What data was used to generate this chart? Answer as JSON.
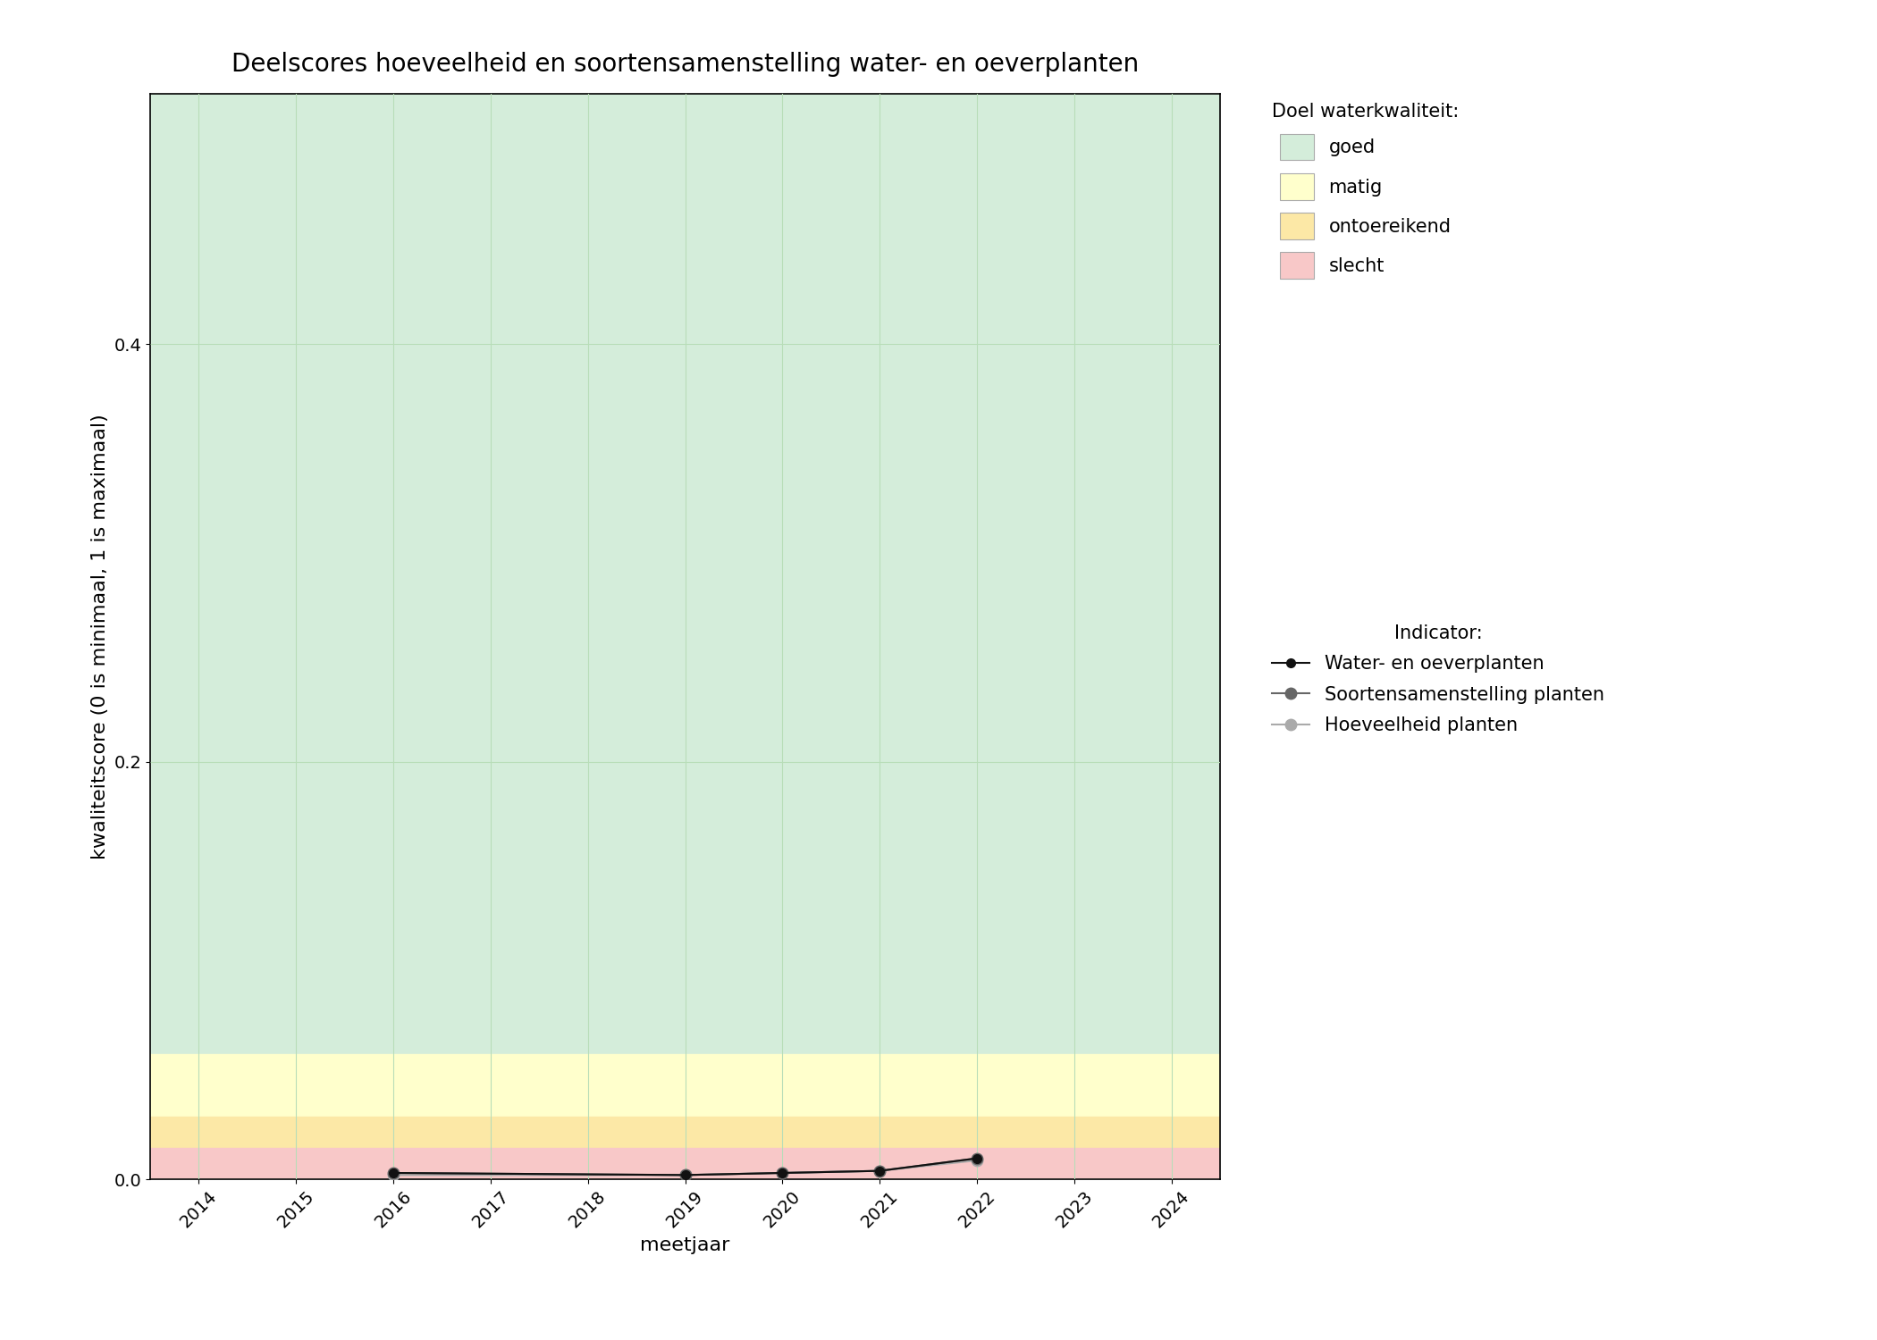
{
  "title": "Deelscores hoeveelheid en soortensamenstelling water- en oeverplanten",
  "xlabel": "meetjaar",
  "ylabel": "kwaliteitscore (0 is minimaal, 1 is maximaal)",
  "xlim": [
    2013.5,
    2024.5
  ],
  "ylim": [
    0.0,
    0.52
  ],
  "yticks": [
    0.0,
    0.2,
    0.4
  ],
  "xticks": [
    2014,
    2015,
    2016,
    2017,
    2018,
    2019,
    2020,
    2021,
    2022,
    2023,
    2024
  ],
  "bg_color": "#ffffff",
  "bands": [
    {
      "label": "goed",
      "ymin": 0.06,
      "ymax": 0.52,
      "color": "#d4edda"
    },
    {
      "label": "matig",
      "ymin": 0.03,
      "ymax": 0.06,
      "color": "#ffffcc"
    },
    {
      "label": "ontoereikend",
      "ymin": 0.015,
      "ymax": 0.03,
      "color": "#fce8a6"
    },
    {
      "label": "slecht",
      "ymin": 0.0,
      "ymax": 0.015,
      "color": "#f8c8c8"
    }
  ],
  "series": [
    {
      "label": "Water- en oeverplanten",
      "x": [
        2016,
        2019,
        2020,
        2021,
        2022
      ],
      "y": [
        0.003,
        0.002,
        0.003,
        0.004,
        0.01
      ],
      "color": "#111111",
      "linewidth": 1.5,
      "markersize": 7,
      "marker": "o",
      "zorder": 5
    },
    {
      "label": "Soortensamenstelling planten",
      "x": [
        2016,
        2019,
        2020,
        2021,
        2022
      ],
      "y": [
        0.003,
        0.002,
        0.003,
        0.004,
        0.01
      ],
      "color": "#666666",
      "linewidth": 1.5,
      "markersize": 9,
      "marker": "o",
      "zorder": 4
    },
    {
      "label": "Hoeveelheid planten",
      "x": [
        2016,
        2019,
        2020,
        2021,
        2022
      ],
      "y": [
        0.002,
        0.002,
        0.003,
        0.004,
        0.009
      ],
      "color": "#aaaaaa",
      "linewidth": 1.5,
      "markersize": 9,
      "marker": "o",
      "zorder": 3
    }
  ],
  "legend_doel_title": "Doel waterkwaliteit:",
  "legend_indicator_title": "Indicator:",
  "title_fontsize": 20,
  "label_fontsize": 16,
  "tick_fontsize": 14,
  "legend_fontsize": 15
}
